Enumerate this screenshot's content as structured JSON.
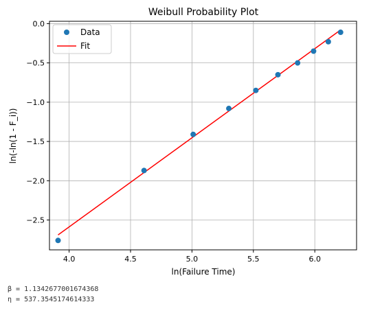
{
  "chart_data": {
    "type": "scatter",
    "title": "Weibull Probability Plot",
    "xlabel": "ln(Failure Time)",
    "ylabel": "ln(-ln(1 - F_i))",
    "xlim": [
      3.84,
      6.34
    ],
    "ylim": [
      -2.88,
      0.03
    ],
    "x_ticks": [
      4.0,
      4.5,
      5.0,
      5.5,
      6.0
    ],
    "x_tick_labels": [
      "4.0",
      "4.5",
      "5.0",
      "5.5",
      "6.0"
    ],
    "y_ticks": [
      0.0,
      -0.5,
      -1.0,
      -1.5,
      -2.0,
      -2.5
    ],
    "y_tick_labels": [
      "0.0",
      "−0.5",
      "−1.0",
      "−1.5",
      "−2.0",
      "−2.5"
    ],
    "grid": true,
    "legend": {
      "placement": "top-left",
      "entries": [
        "Data",
        "Fit"
      ]
    },
    "series": [
      {
        "name": "Data",
        "kind": "scatter",
        "color": "#1f77b4",
        "x": [
          3.91,
          4.61,
          5.01,
          5.3,
          5.52,
          5.7,
          5.86,
          5.99,
          6.11,
          6.21
        ],
        "y": [
          -2.76,
          -1.87,
          -1.41,
          -1.08,
          -0.85,
          -0.65,
          -0.5,
          -0.35,
          -0.23,
          -0.11
        ]
      },
      {
        "name": "Fit",
        "kind": "line",
        "color": "#ff0000",
        "x": [
          3.91,
          6.21
        ],
        "y": [
          -2.69,
          -0.08
        ]
      }
    ]
  },
  "output": {
    "beta_line": "β = 1.1342677001674368",
    "eta_line": "η = 537.3545174614333"
  }
}
